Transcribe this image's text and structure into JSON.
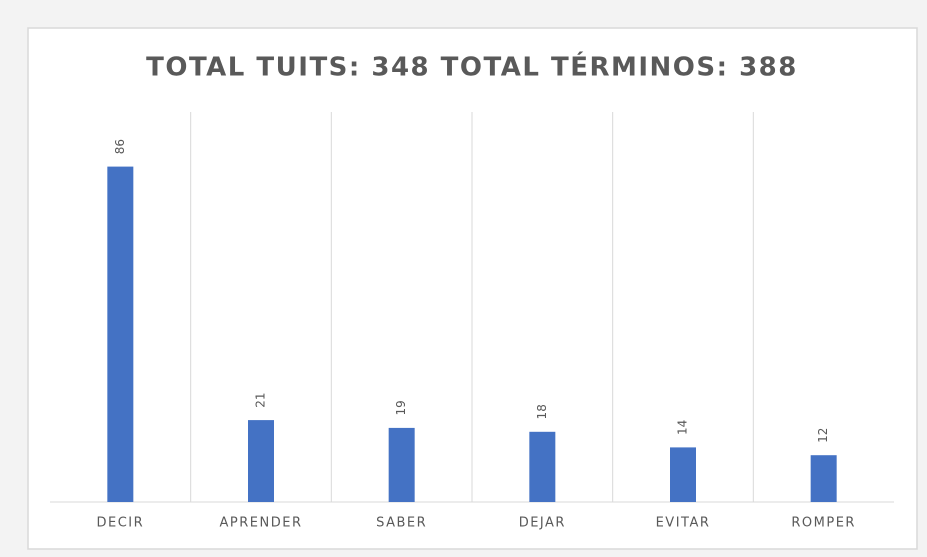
{
  "chart_data": {
    "type": "bar",
    "title": "TOTAL TUITS: 348 TOTAL TÉRMINOS: 388",
    "categories": [
      "DECIR",
      "APRENDER",
      "SABER",
      "DEJAR",
      "EVITAR",
      "ROMPER"
    ],
    "values": [
      86,
      21,
      19,
      18,
      14,
      12
    ],
    "color": "#4472c4",
    "ylim": [
      0,
      100
    ],
    "grid": true
  }
}
